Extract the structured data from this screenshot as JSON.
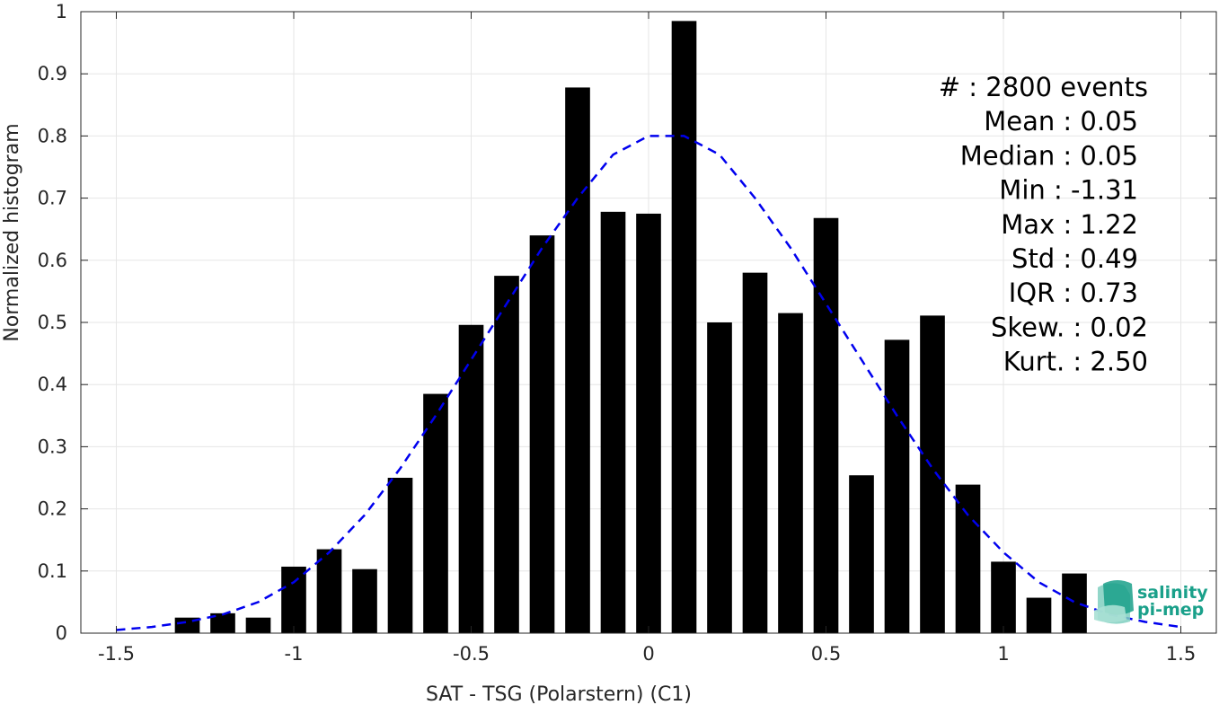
{
  "chart_data": {
    "type": "bar",
    "title": "",
    "xlabel": "SAT - TSG (Polarstern) (C1)",
    "ylabel": "Normalized histogram",
    "xlim": [
      -1.6,
      1.6
    ],
    "ylim": [
      0,
      1
    ],
    "x_ticks": [
      -1.5,
      -1,
      -0.5,
      0,
      0.5,
      1,
      1.5
    ],
    "x_tick_labels": [
      "-1.5",
      "-1",
      "-0.5",
      "0",
      "0.5",
      "1",
      "1.5"
    ],
    "y_ticks": [
      0,
      0.1,
      0.2,
      0.3,
      0.4,
      0.5,
      0.6,
      0.7,
      0.8,
      0.9,
      1
    ],
    "y_tick_labels": [
      "0",
      "0.1",
      "0.2",
      "0.3",
      "0.4",
      "0.5",
      "0.6",
      "0.7",
      "0.8",
      "0.9",
      "1"
    ],
    "grid": true,
    "bar_color": "#000000",
    "bar_width": 0.07,
    "bins": {
      "x": [
        -1.3,
        -1.2,
        -1.1,
        -1.0,
        -0.9,
        -0.8,
        -0.7,
        -0.6,
        -0.5,
        -0.4,
        -0.3,
        -0.2,
        -0.1,
        0.0,
        0.1,
        0.2,
        0.3,
        0.4,
        0.5,
        0.6,
        0.7,
        0.8,
        0.9,
        1.0,
        1.1,
        1.2
      ],
      "values": [
        0.025,
        0.032,
        0.025,
        0.107,
        0.135,
        0.103,
        0.25,
        0.385,
        0.496,
        0.575,
        0.64,
        0.878,
        0.678,
        0.675,
        0.985,
        0.5,
        0.58,
        0.515,
        0.668,
        0.254,
        0.472,
        0.511,
        0.239,
        0.115,
        0.057,
        0.096
      ]
    },
    "fit_curve": {
      "style": "dashed",
      "color": "#0000ee",
      "x": [
        -1.5,
        -1.4,
        -1.3,
        -1.2,
        -1.1,
        -1.0,
        -0.9,
        -0.8,
        -0.7,
        -0.6,
        -0.5,
        -0.4,
        -0.3,
        -0.2,
        -0.1,
        0.0,
        0.1,
        0.2,
        0.3,
        0.4,
        0.5,
        0.6,
        0.7,
        0.8,
        0.9,
        1.0,
        1.1,
        1.2,
        1.3,
        1.4,
        1.5
      ],
      "y": [
        0.005,
        0.01,
        0.018,
        0.03,
        0.05,
        0.082,
        0.13,
        0.19,
        0.265,
        0.35,
        0.44,
        0.53,
        0.62,
        0.7,
        0.77,
        0.8,
        0.8,
        0.77,
        0.7,
        0.62,
        0.53,
        0.44,
        0.35,
        0.265,
        0.19,
        0.13,
        0.082,
        0.05,
        0.03,
        0.018,
        0.01
      ]
    },
    "stats": [
      "#  : 2800 events",
      "Mean : 0.05",
      "Median : 0.05",
      "Min : -1.31",
      "Max : 1.22",
      "Std : 0.49",
      "IQR : 0.73",
      "Skew. : 0.02",
      "Kurt. : 2.50"
    ]
  },
  "logo": {
    "line1": "salinity",
    "line2": "pi-mep",
    "color": "#1aa08a"
  }
}
